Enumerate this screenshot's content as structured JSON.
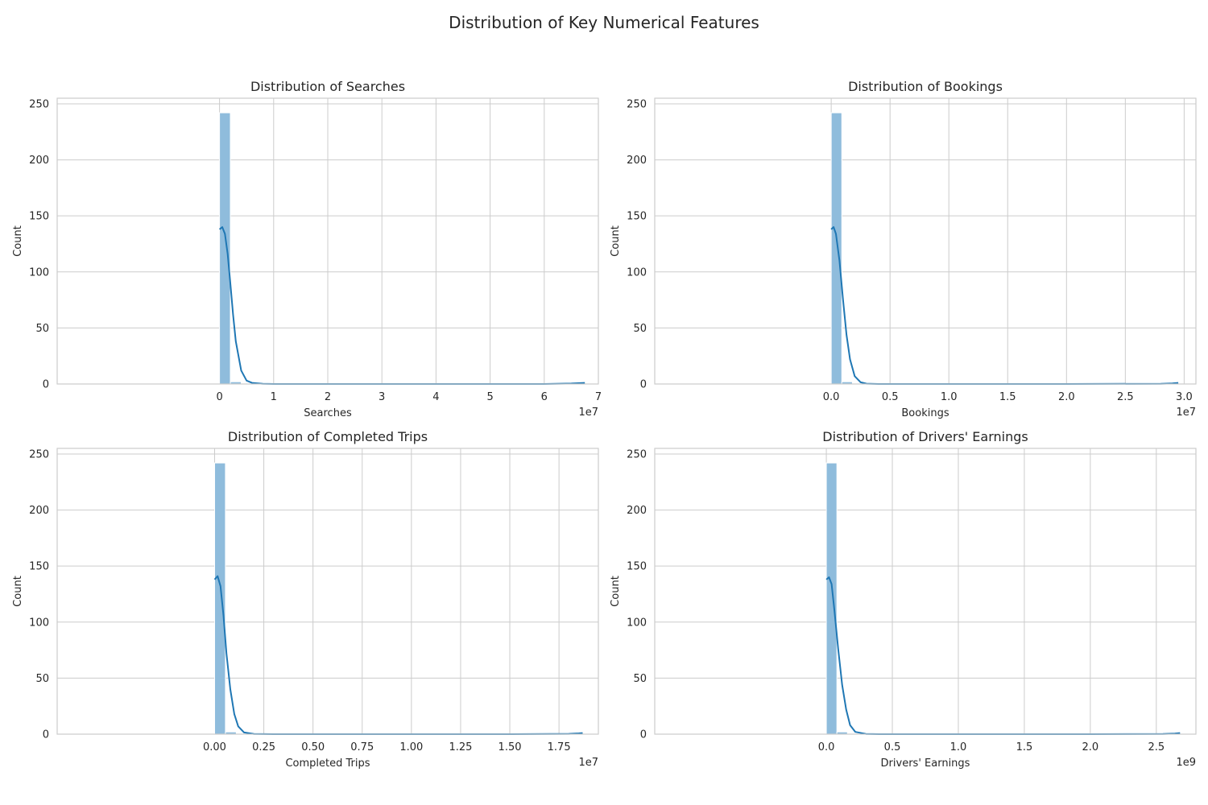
{
  "figure": {
    "title": "Distribution of Key Numerical Features"
  },
  "colors": {
    "bar_fill": "#8fbcdc",
    "bar_edge": "#ffffff",
    "kde_line": "#1f77b4",
    "grid": "#cccccc",
    "spine": "#cccccc",
    "background": "#ffffff"
  },
  "chart_data": [
    {
      "type": "bar",
      "title": "Distribution of Searches",
      "xlabel": "Searches",
      "ylabel": "Count",
      "offset_text": "1e7",
      "xlim": [
        -3.0,
        7.0
      ],
      "ylim": [
        0,
        255
      ],
      "xticks": [
        0,
        1,
        2,
        3,
        4,
        5,
        6,
        7
      ],
      "xtick_labels": [
        "0",
        "1",
        "2",
        "3",
        "4",
        "5",
        "6",
        "7"
      ],
      "yticks": [
        0,
        50,
        100,
        150,
        200,
        250
      ],
      "ytick_labels": [
        "0",
        "50",
        "100",
        "150",
        "200",
        "250"
      ],
      "grid": true,
      "bins": [
        {
          "x0": 0.0,
          "x1": 0.2,
          "count": 242
        },
        {
          "x0": 0.2,
          "x1": 0.4,
          "count": 2
        },
        {
          "x0": 6.55,
          "x1": 6.75,
          "count": 1
        }
      ],
      "kde": {
        "x": [
          0.0,
          0.05,
          0.1,
          0.15,
          0.2,
          0.25,
          0.3,
          0.4,
          0.5,
          0.6,
          0.8,
          1.0,
          2.0,
          4.0,
          6.0,
          6.5,
          6.75
        ],
        "y": [
          138,
          140,
          134,
          116,
          90,
          62,
          38,
          12,
          3,
          1,
          0.2,
          0,
          0,
          0,
          0,
          0.4,
          1
        ]
      }
    },
    {
      "type": "bar",
      "title": "Distribution of Bookings",
      "xlabel": "Bookings",
      "ylabel": "Count",
      "offset_text": "1e7",
      "xlim": [
        -1.5,
        3.1
      ],
      "ylim": [
        0,
        255
      ],
      "xticks": [
        0.0,
        0.5,
        1.0,
        1.5,
        2.0,
        2.5,
        3.0
      ],
      "xtick_labels": [
        "0.0",
        "0.5",
        "1.0",
        "1.5",
        "2.0",
        "2.5",
        "3.0"
      ],
      "yticks": [
        0,
        50,
        100,
        150,
        200,
        250
      ],
      "ytick_labels": [
        "0",
        "50",
        "100",
        "150",
        "200",
        "250"
      ],
      "grid": true,
      "bins": [
        {
          "x0": 0.0,
          "x1": 0.09,
          "count": 242
        },
        {
          "x0": 0.09,
          "x1": 0.18,
          "count": 2
        },
        {
          "x0": 2.86,
          "x1": 2.95,
          "count": 1
        }
      ],
      "kde": {
        "x": [
          0.0,
          0.02,
          0.04,
          0.07,
          0.1,
          0.13,
          0.16,
          0.2,
          0.25,
          0.3,
          0.4,
          0.5,
          1.0,
          2.0,
          2.8,
          2.9,
          2.95
        ],
        "y": [
          138,
          140,
          134,
          110,
          76,
          44,
          22,
          7,
          1.5,
          0.3,
          0,
          0,
          0,
          0,
          0.2,
          0.6,
          1
        ]
      }
    },
    {
      "type": "bar",
      "title": "Distribution of Completed Trips",
      "xlabel": "Completed Trips",
      "ylabel": "Count",
      "offset_text": "1e7",
      "xlim": [
        -0.8,
        1.95
      ],
      "ylim": [
        0,
        255
      ],
      "xticks": [
        0.0,
        0.25,
        0.5,
        0.75,
        1.0,
        1.25,
        1.5,
        1.75
      ],
      "xtick_labels": [
        "0.00",
        "0.25",
        "0.50",
        "0.75",
        "1.00",
        "1.25",
        "1.50",
        "1.75"
      ],
      "yticks": [
        0,
        50,
        100,
        150,
        200,
        250
      ],
      "ytick_labels": [
        "0",
        "50",
        "100",
        "150",
        "200",
        "250"
      ],
      "grid": true,
      "bins": [
        {
          "x0": 0.0,
          "x1": 0.055,
          "count": 242
        },
        {
          "x0": 0.055,
          "x1": 0.11,
          "count": 2
        },
        {
          "x0": 1.81,
          "x1": 1.865,
          "count": 1
        }
      ],
      "kde": {
        "x": [
          0.0,
          0.015,
          0.03,
          0.045,
          0.06,
          0.08,
          0.1,
          0.12,
          0.15,
          0.2,
          0.3,
          0.5,
          1.0,
          1.5,
          1.8,
          1.85,
          1.87
        ],
        "y": [
          138,
          141,
          132,
          106,
          72,
          40,
          18,
          7,
          1.5,
          0.2,
          0,
          0,
          0,
          0,
          0.3,
          0.7,
          1
        ]
      }
    },
    {
      "type": "bar",
      "title": "Distribution of Drivers' Earnings",
      "xlabel": "Drivers' Earnings",
      "ylabel": "Count",
      "offset_text": "1e9",
      "xlim": [
        -1.3,
        2.8
      ],
      "ylim": [
        0,
        255
      ],
      "xticks": [
        0.0,
        0.5,
        1.0,
        1.5,
        2.0,
        2.5
      ],
      "xtick_labels": [
        "0.0",
        "0.5",
        "1.0",
        "1.5",
        "2.0",
        "2.5"
      ],
      "yticks": [
        0,
        50,
        100,
        150,
        200,
        250
      ],
      "ytick_labels": [
        "0",
        "50",
        "100",
        "150",
        "200",
        "250"
      ],
      "grid": true,
      "bins": [
        {
          "x0": 0.0,
          "x1": 0.08,
          "count": 242
        },
        {
          "x0": 0.08,
          "x1": 0.16,
          "count": 2
        },
        {
          "x0": 2.6,
          "x1": 2.68,
          "count": 1
        }
      ],
      "kde": {
        "x": [
          0.0,
          0.02,
          0.04,
          0.06,
          0.09,
          0.12,
          0.15,
          0.18,
          0.22,
          0.3,
          0.4,
          0.5,
          1.0,
          2.0,
          2.55,
          2.64,
          2.68
        ],
        "y": [
          138,
          140,
          134,
          112,
          76,
          44,
          22,
          8,
          2,
          0.2,
          0,
          0,
          0,
          0,
          0.2,
          0.6,
          1
        ]
      }
    }
  ]
}
